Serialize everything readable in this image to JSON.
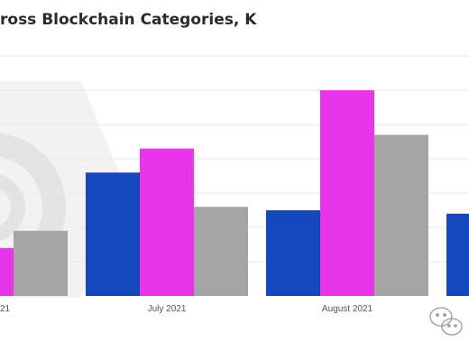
{
  "chart_data": {
    "type": "bar",
    "title": "ross Blockchain Categories, K",
    "xlabel": "",
    "ylabel": "",
    "categories": [
      "21",
      "July 2021",
      "August 2021",
      ""
    ],
    "series": [
      {
        "color": "#1446bc",
        "values": [
          null,
          36,
          25,
          24
        ]
      },
      {
        "color": "#e935ea",
        "values": [
          14,
          43,
          60,
          null
        ]
      },
      {
        "color": "#a5a5a5",
        "values": [
          19,
          26,
          47,
          null
        ]
      }
    ],
    "ylim": [
      0,
      75
    ],
    "gridlines": [
      10,
      20,
      30,
      40,
      50,
      60,
      70
    ],
    "grid": true,
    "legend": "none"
  }
}
